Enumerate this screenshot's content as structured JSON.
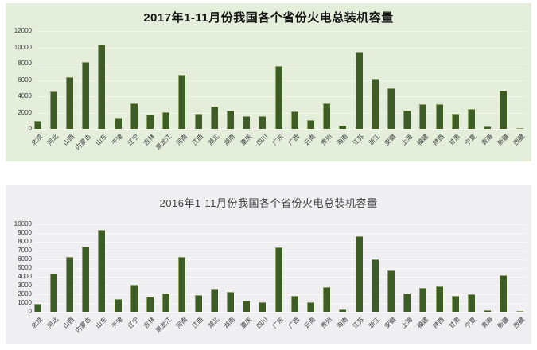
{
  "chart_data": [
    {
      "id": "thermal-power-2017",
      "type": "bar",
      "title": "2017年1-11月份我国各个省份火电总装机容量",
      "categories": [
        "北京",
        "河北",
        "山西",
        "内蒙古",
        "山东",
        "天津",
        "辽宁",
        "吉林",
        "黑龙江",
        "河南",
        "江西",
        "湖北",
        "湖南",
        "重庆",
        "四川",
        "广东",
        "广西",
        "云南",
        "贵州",
        "海南",
        "江苏",
        "浙江",
        "安徽",
        "上海",
        "福建",
        "陕西",
        "甘肃",
        "宁夏",
        "青海",
        "新疆",
        "西藏"
      ],
      "values": [
        1000,
        4600,
        6300,
        8200,
        10300,
        1400,
        3100,
        1750,
        2050,
        6600,
        1850,
        2700,
        2250,
        1550,
        1600,
        7700,
        2100,
        1100,
        3100,
        400,
        9400,
        6100,
        5000,
        2200,
        3000,
        3000,
        1900,
        2400,
        300,
        4700,
        50
      ],
      "xlabel": "",
      "ylabel": "",
      "ylim": [
        0,
        12000
      ],
      "yticks": [
        0,
        2000,
        4000,
        6000,
        8000,
        10000,
        12000
      ],
      "grid": true,
      "legend": "none",
      "colors": {
        "panel_bg": "#e4eeda",
        "grid": "#f2f7ea",
        "bar": "#3d5c26",
        "bar_edge": "#8aa463",
        "title": "#161616",
        "axis_text": "#3c3c3c"
      }
    },
    {
      "id": "thermal-power-2016",
      "type": "bar",
      "title": "2016年1-11月份我国各个省份火电总装机容量",
      "categories": [
        "北京",
        "河北",
        "山西",
        "内蒙古",
        "山东",
        "天津",
        "辽宁",
        "吉林",
        "黑龙江",
        "河南",
        "江西",
        "湖北",
        "湖南",
        "重庆",
        "四川",
        "广东",
        "广西",
        "云南",
        "贵州",
        "海南",
        "江苏",
        "浙江",
        "安徽",
        "上海",
        "福建",
        "陕西",
        "甘肃",
        "宁夏",
        "青海",
        "新疆",
        "西藏"
      ],
      "values": [
        900,
        4400,
        6300,
        7500,
        9400,
        1450,
        3100,
        1750,
        2100,
        6300,
        1900,
        2650,
        2300,
        1300,
        1050,
        7400,
        1850,
        1100,
        2850,
        270,
        8600,
        6000,
        4750,
        2100,
        2750,
        2900,
        1800,
        2000,
        200,
        4200,
        30
      ],
      "xlabel": "",
      "ylabel": "",
      "ylim": [
        0,
        10000
      ],
      "yticks": [
        0,
        1000,
        2000,
        3000,
        4000,
        5000,
        6000,
        7000,
        8000,
        9000,
        10000
      ],
      "grid": true,
      "legend": "none",
      "colors": {
        "panel_bg": "#efeef1",
        "grid": "#fbfbfc",
        "bar": "#3d5c26",
        "bar_edge": "#8aa463",
        "title": "#3f3f3f",
        "axis_text": "#3c3c3c"
      }
    }
  ]
}
